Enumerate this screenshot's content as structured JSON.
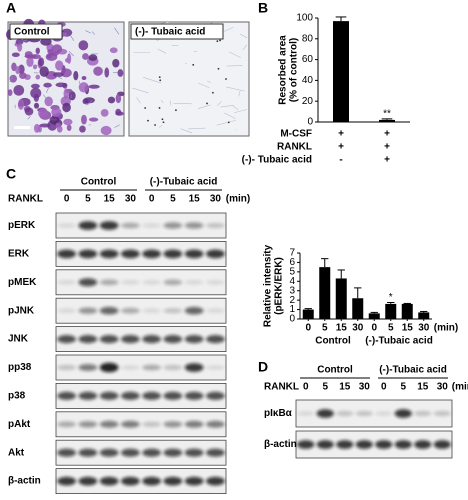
{
  "panel_labels": [
    "A",
    "B",
    "C",
    "D"
  ],
  "panel_a": {
    "image_labels": [
      "Control",
      "(-)- Tubaic acid"
    ]
  },
  "chart_data": [
    {
      "type": "bar",
      "ylabel": [
        "Resorbed area",
        "(% of control)"
      ],
      "values": [
        97,
        2
      ],
      "errors": [
        4,
        1
      ],
      "annotations": [
        null,
        "**"
      ],
      "color": "#000000",
      "ylim": [
        0,
        100
      ],
      "yticks": [
        0,
        20,
        40,
        60,
        80,
        100
      ],
      "conditions": [
        {
          "name": "M-CSF",
          "values": [
            "+",
            "+"
          ]
        },
        {
          "name": "RANKL",
          "values": [
            "+",
            "+"
          ]
        },
        {
          "name": "(-)- Tubaic acid",
          "values": [
            "-",
            "+"
          ]
        }
      ]
    },
    {
      "type": "bar",
      "ylabel": [
        "Relative intensity",
        "(pERK/ERK)"
      ],
      "categories": [
        0,
        5,
        15,
        30,
        0,
        5,
        15,
        30
      ],
      "x_unit": "(min)",
      "groups": [
        "Control",
        "(-)-Tubaic acid"
      ],
      "values": [
        1,
        5.5,
        4.3,
        2.2,
        0.6,
        1.6,
        1.6,
        0.7
      ],
      "errors": [
        0.1,
        0.9,
        0.9,
        1.1,
        0.1,
        0.15,
        0.05,
        0.1
      ],
      "annotations": [
        null,
        null,
        null,
        null,
        null,
        "*",
        null,
        null
      ],
      "color": "#000000",
      "ylim": [
        0,
        7
      ],
      "yticks": [
        0,
        1,
        2,
        3,
        4,
        5,
        6,
        7
      ]
    }
  ],
  "panel_c": {
    "groups": [
      "Control",
      "(-)-Tubaic acid"
    ],
    "row_label": "RANKL",
    "times": [
      0,
      5,
      15,
      30,
      0,
      5,
      15,
      30
    ],
    "unit": "(min)",
    "blots": [
      "pERK",
      "ERK",
      "pMEK",
      "pJNK",
      "JNK",
      "pp38",
      "p38",
      "pAkt",
      "Akt",
      "β-actin"
    ]
  },
  "panel_d": {
    "groups": [
      "Control",
      "(-)-Tubaic acid"
    ],
    "row_label": "RANKL",
    "times": [
      0,
      5,
      15,
      30,
      0,
      5,
      15,
      30
    ],
    "unit": "(min)",
    "blots": [
      "pIκBα",
      "β-actin"
    ]
  }
}
